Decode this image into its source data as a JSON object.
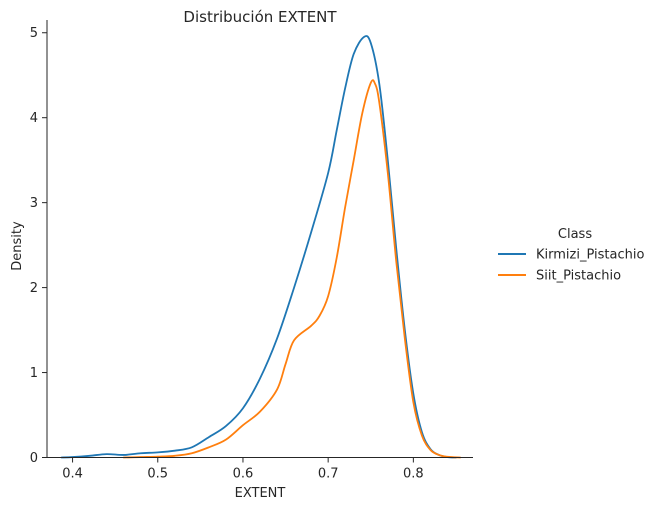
{
  "chart_data": {
    "type": "line",
    "title": "Distribución EXTENT",
    "xlabel": "EXTENT",
    "ylabel": "Density",
    "xlim": [
      0.37,
      0.87
    ],
    "ylim": [
      0,
      5.15
    ],
    "x_ticks": [
      0.4,
      0.5,
      0.6,
      0.7,
      0.8
    ],
    "x_tick_labels": [
      "0.4",
      "0.5",
      "0.6",
      "0.7",
      "0.8"
    ],
    "y_ticks": [
      0,
      1,
      2,
      3,
      4,
      5
    ],
    "y_tick_labels": [
      "0",
      "1",
      "2",
      "3",
      "4",
      "5"
    ],
    "grid": false,
    "legend": {
      "title": "Class",
      "placement": "right-outside"
    },
    "series": [
      {
        "name": "Kirmizi_Pistachio",
        "color": "#1f77b4",
        "points": [
          [
            0.387,
            0.0
          ],
          [
            0.4,
            0.005
          ],
          [
            0.42,
            0.02
          ],
          [
            0.44,
            0.04
          ],
          [
            0.46,
            0.03
          ],
          [
            0.48,
            0.05
          ],
          [
            0.5,
            0.06
          ],
          [
            0.52,
            0.08
          ],
          [
            0.54,
            0.12
          ],
          [
            0.56,
            0.24
          ],
          [
            0.58,
            0.37
          ],
          [
            0.6,
            0.58
          ],
          [
            0.62,
            0.93
          ],
          [
            0.64,
            1.4
          ],
          [
            0.66,
            2.0
          ],
          [
            0.68,
            2.65
          ],
          [
            0.7,
            3.35
          ],
          [
            0.71,
            3.85
          ],
          [
            0.72,
            4.35
          ],
          [
            0.73,
            4.75
          ],
          [
            0.742,
            4.95
          ],
          [
            0.75,
            4.88
          ],
          [
            0.76,
            4.4
          ],
          [
            0.77,
            3.5
          ],
          [
            0.78,
            2.45
          ],
          [
            0.79,
            1.5
          ],
          [
            0.8,
            0.75
          ],
          [
            0.81,
            0.3
          ],
          [
            0.82,
            0.1
          ],
          [
            0.83,
            0.03
          ],
          [
            0.84,
            0.005
          ],
          [
            0.85,
            0.0
          ]
        ]
      },
      {
        "name": "Siit_Pistachio",
        "color": "#ff7f0e",
        "points": [
          [
            0.46,
            0.0
          ],
          [
            0.48,
            0.005
          ],
          [
            0.5,
            0.01
          ],
          [
            0.52,
            0.02
          ],
          [
            0.54,
            0.05
          ],
          [
            0.56,
            0.12
          ],
          [
            0.58,
            0.21
          ],
          [
            0.6,
            0.38
          ],
          [
            0.62,
            0.54
          ],
          [
            0.64,
            0.8
          ],
          [
            0.65,
            1.1
          ],
          [
            0.66,
            1.38
          ],
          [
            0.68,
            1.55
          ],
          [
            0.69,
            1.67
          ],
          [
            0.7,
            1.9
          ],
          [
            0.71,
            2.35
          ],
          [
            0.72,
            2.95
          ],
          [
            0.73,
            3.5
          ],
          [
            0.74,
            4.05
          ],
          [
            0.75,
            4.41
          ],
          [
            0.755,
            4.4
          ],
          [
            0.76,
            4.18
          ],
          [
            0.77,
            3.35
          ],
          [
            0.78,
            2.3
          ],
          [
            0.79,
            1.4
          ],
          [
            0.8,
            0.65
          ],
          [
            0.81,
            0.26
          ],
          [
            0.82,
            0.09
          ],
          [
            0.83,
            0.03
          ],
          [
            0.84,
            0.008
          ],
          [
            0.855,
            0.0
          ]
        ]
      }
    ]
  }
}
